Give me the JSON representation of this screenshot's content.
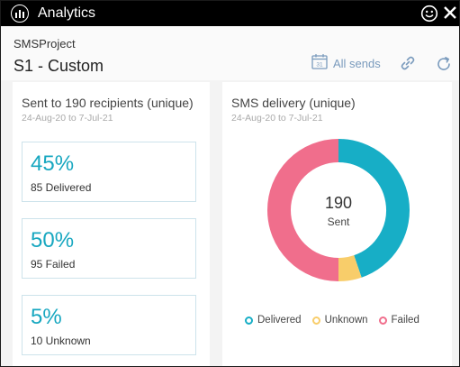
{
  "window": {
    "title": "Analytics"
  },
  "header": {
    "project": "SMSProject",
    "title": "S1 - Custom",
    "all_sends_label": "All sends"
  },
  "left_panel": {
    "title": "Sent to 190 recipients (unique)",
    "date_range": "24-Aug-20 to 7-Jul-21",
    "stats": [
      {
        "percent": "45%",
        "label": "85 Delivered"
      },
      {
        "percent": "50%",
        "label": "95 Failed"
      },
      {
        "percent": "5%",
        "label": "10 Unknown"
      }
    ]
  },
  "right_panel": {
    "title": "SMS delivery (unique)",
    "date_range": "24-Aug-20 to 7-Jul-21",
    "center_value": "190",
    "center_label": "Sent"
  },
  "chart_data": {
    "type": "pie",
    "categories": [
      "Delivered",
      "Unknown",
      "Failed"
    ],
    "values": [
      85,
      10,
      95
    ],
    "colors": [
      "#17aec6",
      "#f8cd6a",
      "#f06e8c"
    ],
    "legend_position": "bottom"
  },
  "colors": {
    "accent": "#17a7c0",
    "titlebar": "#000000",
    "link": "#7a9bbd"
  },
  "icons": {
    "app": "bar-chart-icon",
    "feedback": "smiley-icon",
    "close": "close-icon",
    "calendar": "calendar-icon",
    "link": "link-icon",
    "refresh": "refresh-icon"
  }
}
